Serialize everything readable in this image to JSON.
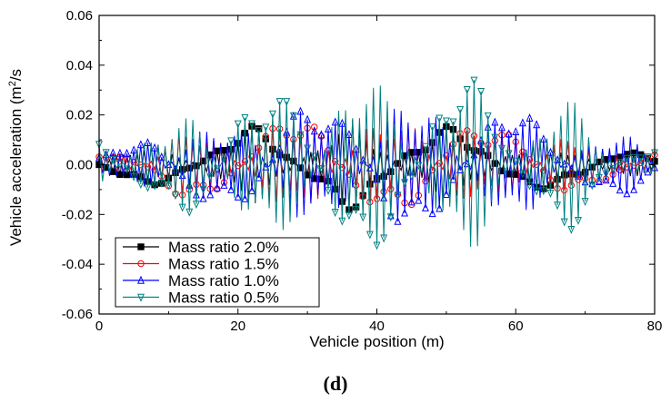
{
  "chart_data": {
    "type": "line",
    "title": "",
    "panel_label": "(d)",
    "xlabel": "Vehicle position (m)",
    "ylabel_main": "Vehicle acceleration (m",
    "ylabel_sup": "2",
    "ylabel_tail": "/s",
    "xlim": [
      0,
      80
    ],
    "ylim": [
      -0.06,
      0.06
    ],
    "x_ticks": [
      0,
      20,
      40,
      60,
      80
    ],
    "x_tick_labels": [
      "0",
      "20",
      "40",
      "60",
      "80"
    ],
    "y_ticks": [
      -0.06,
      -0.04,
      -0.02,
      0.0,
      0.02,
      0.04,
      0.06
    ],
    "y_tick_labels": [
      "-0.06",
      "-0.04",
      "-0.02",
      "0.00",
      "0.02",
      "0.04",
      "0.06"
    ],
    "legend_position": "bottom-left",
    "sample_step_m": 0.5,
    "series": [
      {
        "name": "Mass ratio 2.0%",
        "color": "#000000",
        "marker": "square",
        "amplitude": 0.017,
        "freq": 0.5,
        "phase": 0.0
      },
      {
        "name": "Mass ratio 1.5%",
        "color": "#ff0000",
        "marker": "circle",
        "amplitude": 0.021,
        "freq": 0.5,
        "phase": 1.3
      },
      {
        "name": "Mass ratio 1.0%",
        "color": "#0000ff",
        "marker": "triangle-up",
        "amplitude": 0.027,
        "freq": 0.5,
        "phase": 2.2
      },
      {
        "name": "Mass ratio 0.5%",
        "color": "#008080",
        "marker": "triangle-down",
        "amplitude": 0.037,
        "freq": 0.5,
        "phase": 0.7
      }
    ]
  }
}
